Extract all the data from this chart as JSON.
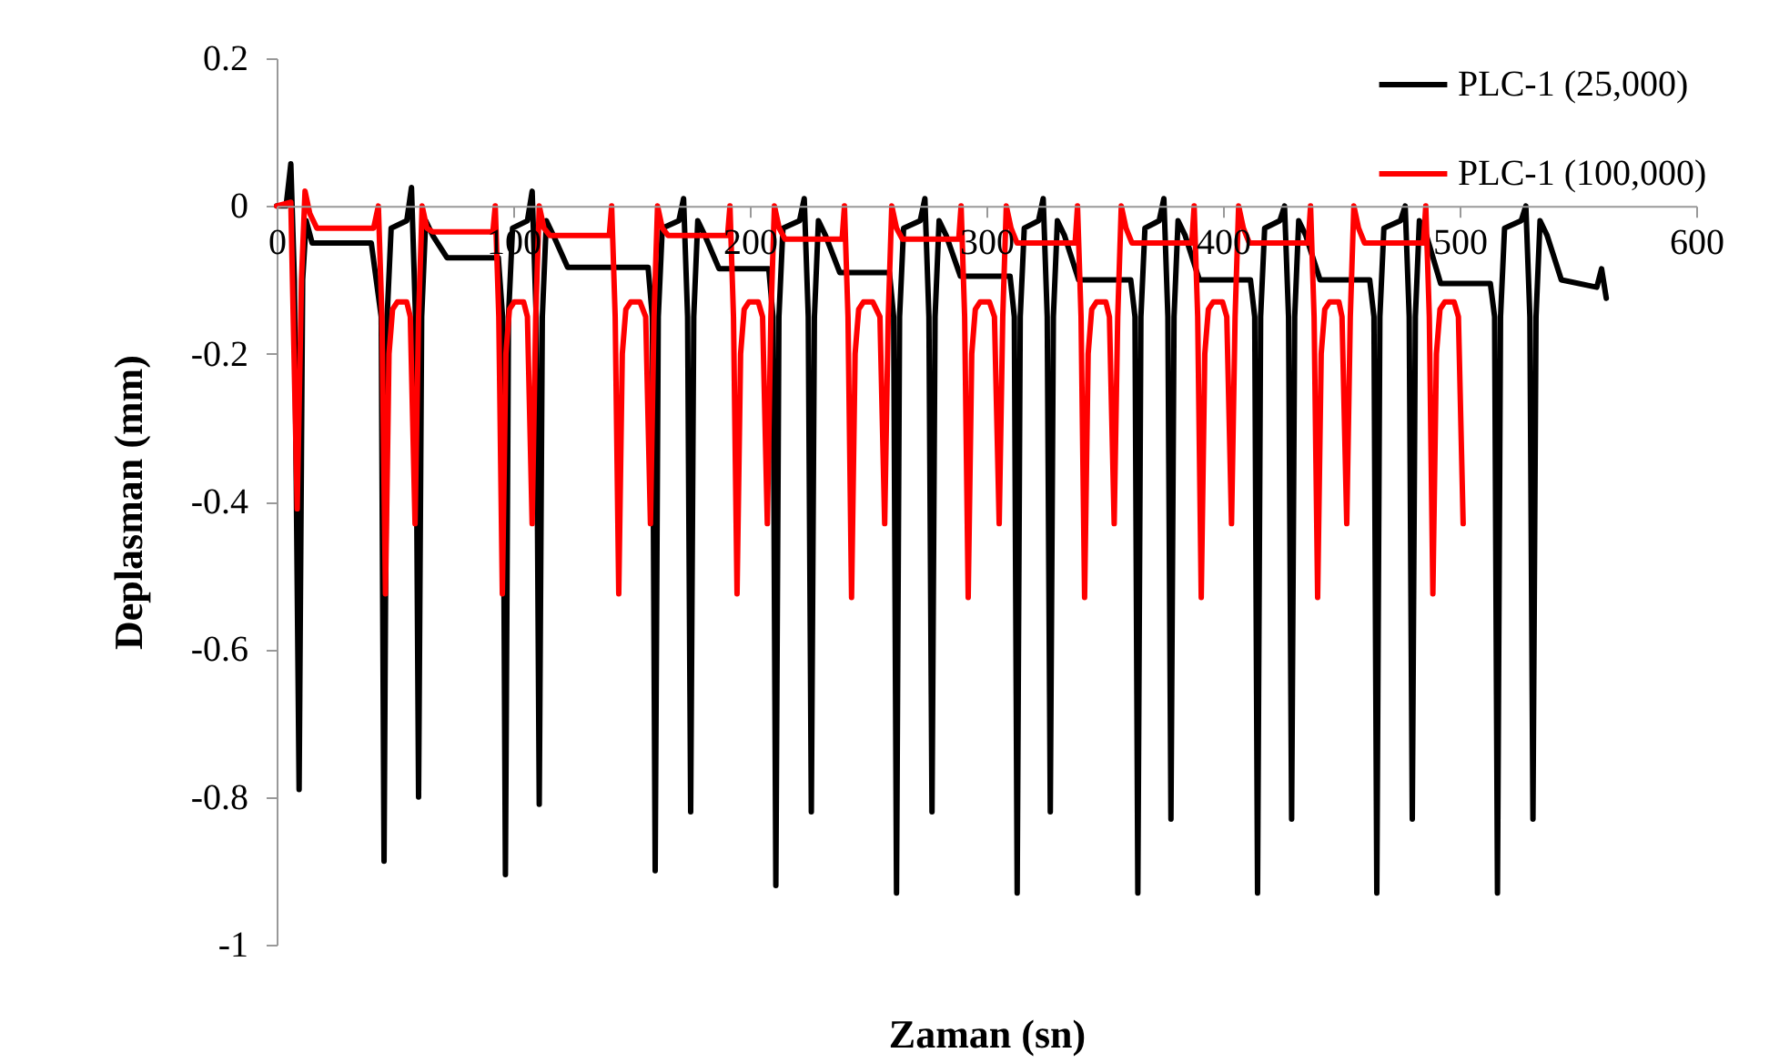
{
  "chart_data": {
    "type": "line",
    "xlabel": "Zaman (sn)",
    "ylabel": "Deplasman (mm)",
    "xlim": [
      0,
      600
    ],
    "xticks": [
      0,
      100,
      200,
      300,
      400,
      500,
      600
    ],
    "ylim": [
      -1,
      0.2
    ],
    "yticks": [
      -1,
      -0.8,
      -0.6,
      -0.4,
      -0.2,
      0,
      0.2
    ],
    "grid": false,
    "legend": "top right",
    "line_style": "solid",
    "series": [
      {
        "name": "PLC-1 (25,000)",
        "color": "#000000",
        "x": [
          0,
          4,
          6,
          7.5,
          9.5,
          11,
          12.5,
          15,
          40,
          44.2,
          45.4,
          46.7,
          48.4,
          55,
          57,
          58.7,
          60,
          61.3,
          63,
          66,
          72,
          93.7,
          95.5,
          96.7,
          98,
          99.7,
          106,
          108,
          109.7,
          111,
          112.3,
          114,
          117,
          123,
          157,
          158.8,
          160,
          161.3,
          163,
          170,
          172,
          173.7,
          175,
          176.3,
          178,
          181,
          187,
          208,
          209.8,
          211,
          212.3,
          214,
          221,
          223,
          224.7,
          226,
          227.3,
          229,
          232,
          238,
          259,
          260.8,
          262,
          263.3,
          265,
          272,
          274,
          275.7,
          277,
          278.3,
          280,
          283,
          289,
          310,
          311.8,
          313,
          314.3,
          316,
          322,
          324,
          325.7,
          327,
          328.3,
          330,
          333,
          339,
          361,
          362.8,
          364,
          365.3,
          367,
          373,
          375,
          376.7,
          378,
          379.3,
          381,
          384,
          390,
          411.6,
          413.4,
          414.6,
          415.9,
          417.6,
          424,
          426,
          427.7,
          429,
          430.3,
          432,
          435,
          441,
          462,
          463.8,
          465,
          466.3,
          468,
          475,
          477,
          478.7,
          480,
          481.3,
          483,
          486,
          492,
          513,
          514.8,
          516,
          517.3,
          519,
          526,
          528,
          529.7,
          531,
          532.3,
          534,
          537,
          543,
          558,
          560,
          562
        ],
        "values": [
          0,
          0,
          0.057,
          -0.1,
          -0.79,
          -0.1,
          -0.02,
          -0.05,
          -0.05,
          -0.15,
          -0.887,
          -0.15,
          -0.03,
          -0.02,
          0.025,
          -0.15,
          -0.8,
          -0.15,
          -0.02,
          -0.04,
          -0.07,
          -0.07,
          -0.15,
          -0.905,
          -0.15,
          -0.03,
          -0.02,
          0.02,
          -0.15,
          -0.81,
          -0.15,
          -0.02,
          -0.04,
          -0.083,
          -0.083,
          -0.15,
          -0.9,
          -0.15,
          -0.03,
          -0.02,
          0.01,
          -0.15,
          -0.82,
          -0.15,
          -0.02,
          -0.04,
          -0.085,
          -0.085,
          -0.15,
          -0.92,
          -0.15,
          -0.03,
          -0.02,
          0.01,
          -0.15,
          -0.82,
          -0.15,
          -0.02,
          -0.04,
          -0.09,
          -0.09,
          -0.15,
          -0.93,
          -0.15,
          -0.03,
          -0.02,
          0.01,
          -0.15,
          -0.82,
          -0.15,
          -0.02,
          -0.04,
          -0.095,
          -0.095,
          -0.15,
          -0.93,
          -0.15,
          -0.03,
          -0.02,
          0.01,
          -0.15,
          -0.82,
          -0.15,
          -0.02,
          -0.04,
          -0.1,
          -0.1,
          -0.15,
          -0.93,
          -0.15,
          -0.03,
          -0.02,
          0.01,
          -0.15,
          -0.83,
          -0.15,
          -0.02,
          -0.04,
          -0.1,
          -0.1,
          -0.15,
          -0.93,
          -0.15,
          -0.03,
          -0.02,
          0,
          -0.15,
          -0.83,
          -0.15,
          -0.02,
          -0.04,
          -0.1,
          -0.1,
          -0.15,
          -0.93,
          -0.15,
          -0.03,
          -0.02,
          0,
          -0.15,
          -0.83,
          -0.15,
          -0.02,
          -0.04,
          -0.105,
          -0.105,
          -0.15,
          -0.93,
          -0.15,
          -0.03,
          -0.02,
          0,
          -0.15,
          -0.83,
          -0.15,
          -0.02,
          -0.04,
          -0.1,
          -0.11,
          -0.085,
          -0.125
        ]
      },
      {
        "name": "PLC-1 (100,000)",
        "color": "#ff0000",
        "x": [
          0,
          6,
          8.7,
          10.5,
          12,
          14,
          17,
          41,
          43,
          44.5,
          46,
          47.5,
          49,
          51,
          55,
          56.5,
          58.5,
          60,
          61.5,
          63.5,
          66,
          91.4,
          92.4,
          93.9,
          95.4,
          96.9,
          98.4,
          100.4,
          104.4,
          106,
          108,
          109.5,
          111,
          113,
          115.5,
          140.6,
          141.6,
          143.1,
          144.6,
          146.1,
          147.6,
          149.6,
          153.6,
          156,
          158,
          159.5,
          161,
          163,
          165.5,
          190.6,
          191.6,
          193.1,
          194.6,
          196.1,
          197.6,
          199.6,
          203.6,
          205.4,
          207.4,
          208.9,
          210.4,
          212.4,
          214.9,
          239,
          240,
          241.5,
          243,
          244.5,
          246,
          248,
          252,
          255,
          257,
          258.5,
          260,
          262,
          264.5,
          288.3,
          289.3,
          290.8,
          292.3,
          293.8,
          295.3,
          297.3,
          301.3,
          303.4,
          305.4,
          306.9,
          308.4,
          310.4,
          312.9,
          337.5,
          338.5,
          340,
          341.5,
          343,
          344.5,
          346.5,
          350.5,
          352,
          354,
          355.5,
          357,
          359,
          361.5,
          386.8,
          387.8,
          389.3,
          390.8,
          392.3,
          393.8,
          395.8,
          399.8,
          401.6,
          403.6,
          405.1,
          406.6,
          408.6,
          411.1,
          436,
          437,
          438.5,
          440,
          441.5,
          443,
          445,
          449,
          450.3,
          452.3,
          453.8,
          455.3,
          457.3,
          459.8,
          484.7,
          485.7,
          487.2,
          488.7,
          490.2,
          491.7,
          493.7,
          497.7,
          499.5,
          501.5
        ],
        "values": [
          0,
          0.005,
          -0.41,
          -0.1,
          0.02,
          -0.01,
          -0.03,
          -0.03,
          0,
          -0.15,
          -0.525,
          -0.2,
          -0.14,
          -0.13,
          -0.13,
          -0.15,
          -0.43,
          -0.15,
          0,
          -0.03,
          -0.035,
          -0.035,
          0,
          -0.15,
          -0.525,
          -0.2,
          -0.14,
          -0.13,
          -0.13,
          -0.15,
          -0.43,
          -0.15,
          0,
          -0.03,
          -0.04,
          -0.04,
          0,
          -0.15,
          -0.525,
          -0.2,
          -0.14,
          -0.13,
          -0.13,
          -0.15,
          -0.43,
          -0.15,
          0,
          -0.03,
          -0.04,
          -0.04,
          0,
          -0.15,
          -0.525,
          -0.2,
          -0.14,
          -0.13,
          -0.13,
          -0.15,
          -0.43,
          -0.15,
          0,
          -0.03,
          -0.045,
          -0.045,
          0,
          -0.15,
          -0.53,
          -0.2,
          -0.14,
          -0.13,
          -0.13,
          -0.15,
          -0.43,
          -0.15,
          0,
          -0.03,
          -0.045,
          -0.045,
          0,
          -0.15,
          -0.53,
          -0.2,
          -0.14,
          -0.13,
          -0.13,
          -0.15,
          -0.43,
          -0.15,
          0,
          -0.03,
          -0.05,
          -0.05,
          0,
          -0.15,
          -0.53,
          -0.2,
          -0.14,
          -0.13,
          -0.13,
          -0.15,
          -0.43,
          -0.15,
          0,
          -0.03,
          -0.05,
          -0.05,
          0,
          -0.15,
          -0.53,
          -0.2,
          -0.14,
          -0.13,
          -0.13,
          -0.15,
          -0.43,
          -0.15,
          0,
          -0.03,
          -0.05,
          -0.05,
          0,
          -0.15,
          -0.53,
          -0.2,
          -0.14,
          -0.13,
          -0.13,
          -0.15,
          -0.43,
          -0.15,
          0,
          -0.03,
          -0.05,
          -0.05,
          0,
          -0.15,
          -0.525,
          -0.2,
          -0.14,
          -0.13,
          -0.13,
          -0.15,
          -0.43
        ]
      }
    ]
  }
}
